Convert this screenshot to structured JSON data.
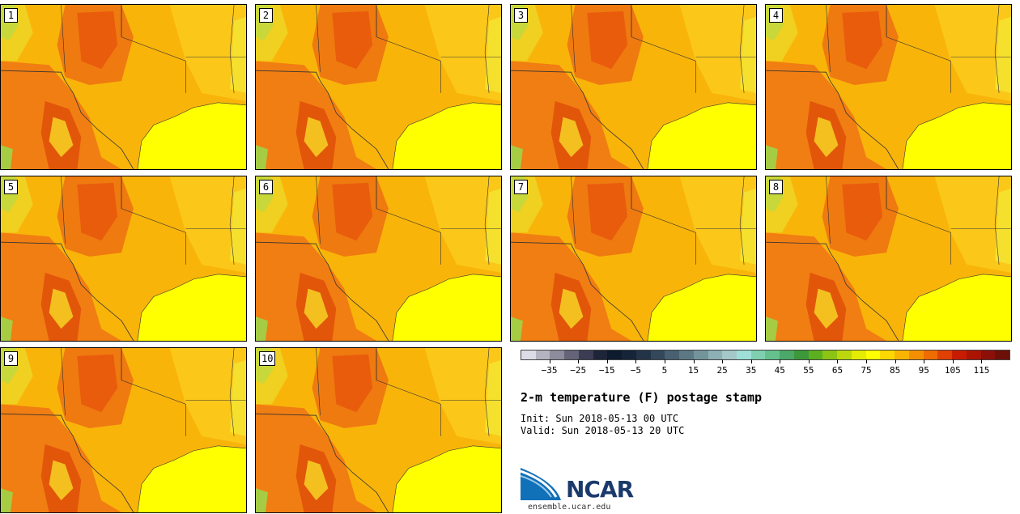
{
  "panels": [
    {
      "label": "1"
    },
    {
      "label": "2"
    },
    {
      "label": "3"
    },
    {
      "label": "4"
    },
    {
      "label": "5"
    },
    {
      "label": "6"
    },
    {
      "label": "7"
    },
    {
      "label": "8"
    },
    {
      "label": "9"
    },
    {
      "label": "10"
    }
  ],
  "colorbar": {
    "colors": [
      "#dcdce6",
      "#b4b4c0",
      "#8c8c9c",
      "#646478",
      "#3c3c54",
      "#1e2538",
      "#0e1a2e",
      "#16243a",
      "#243448",
      "#34485c",
      "#486070",
      "#5c7884",
      "#74949c",
      "#8cb0b4",
      "#a4c8c8",
      "#9ee0d8",
      "#7ed0b0",
      "#64c08c",
      "#4ca868",
      "#3c9838",
      "#5cb020",
      "#8cc414",
      "#bcd80c",
      "#e4ec04",
      "#ffff00",
      "#fcd800",
      "#f8b400",
      "#f49000",
      "#ee6c00",
      "#e04000",
      "#c81c00",
      "#aa1400",
      "#8c1008",
      "#6c1008"
    ],
    "tick_labels": [
      "−35",
      "−25",
      "−15",
      "−5",
      "5",
      "15",
      "25",
      "35",
      "45",
      "55",
      "65",
      "75",
      "85",
      "95",
      "105",
      "115"
    ]
  },
  "title": "2-m temperature (F) postage stamp",
  "init_line": "Init: Sun 2018-05-13 00 UTC",
  "valid_line": "Valid: Sun 2018-05-13 20 UTC",
  "logo": {
    "name": "NCAR",
    "url": "ensemble.ucar.edu"
  }
}
